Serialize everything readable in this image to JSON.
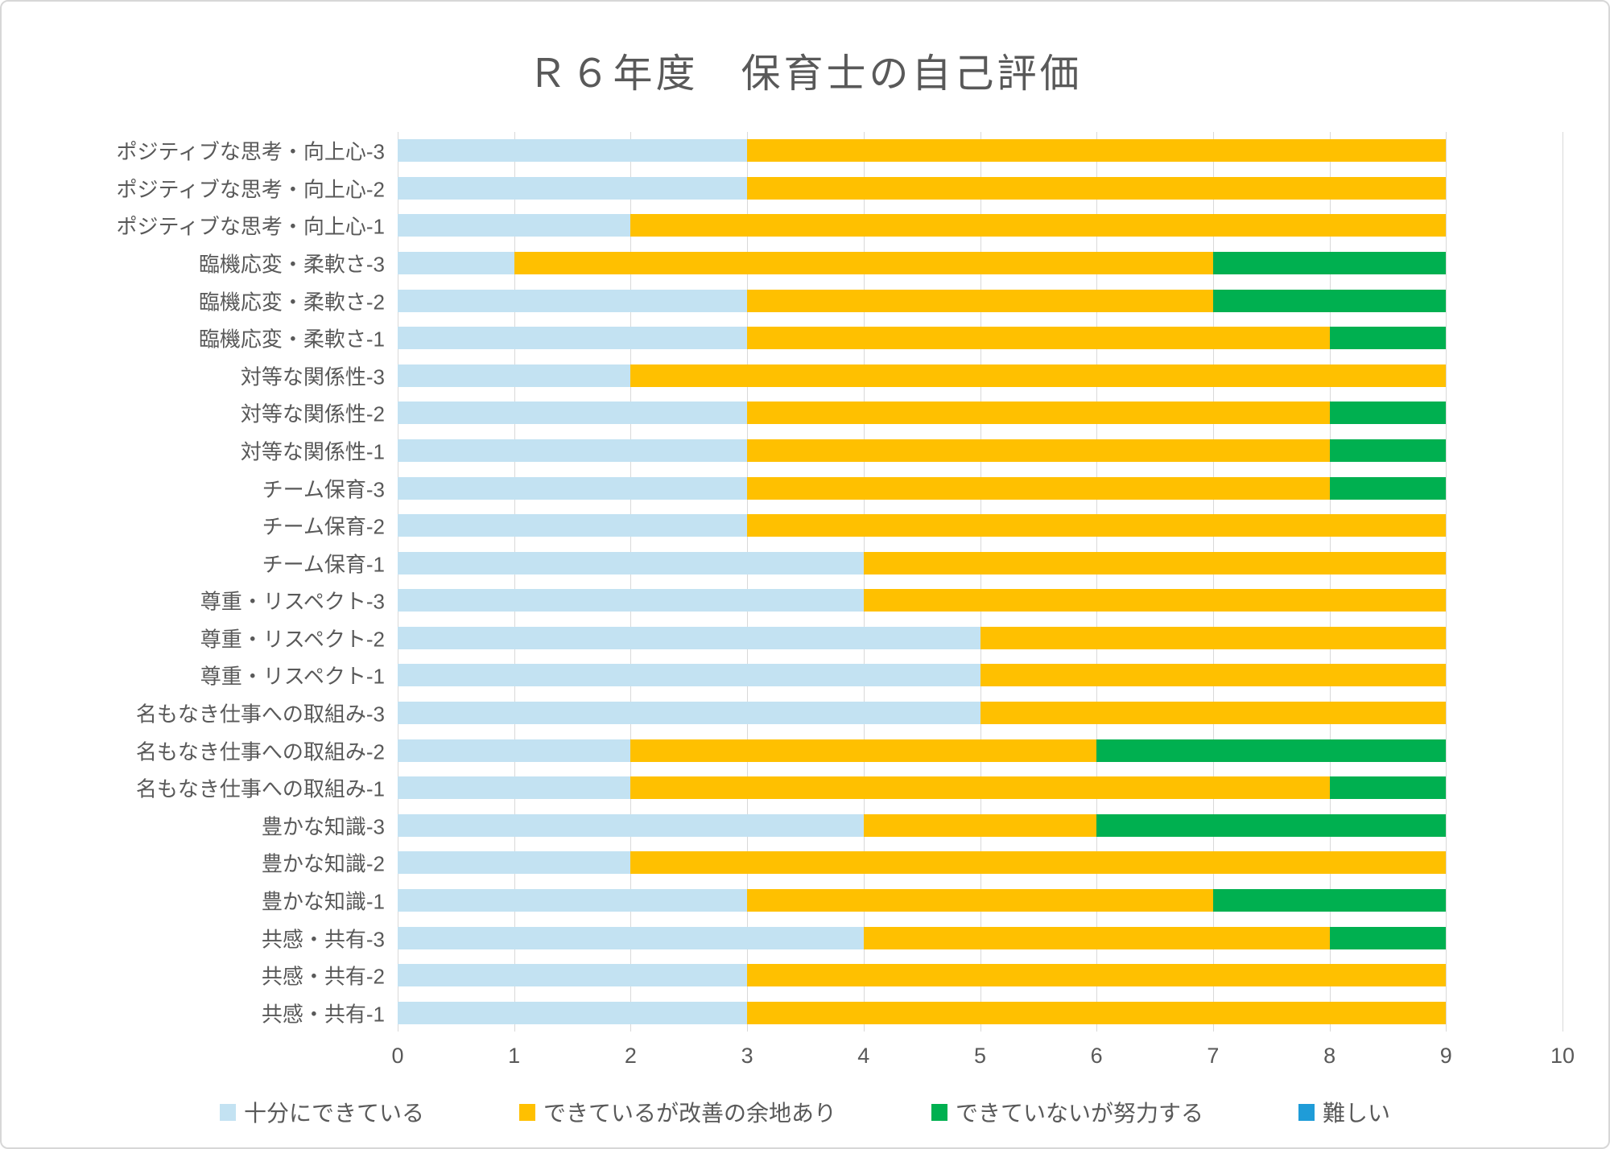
{
  "chart_title": "Ｒ６年度　保育士の自己評価",
  "colors": {
    "grid": "#d9d9d9",
    "text": "#595959",
    "series_blue_light": "#c3e2f2",
    "series_yellow": "#ffc000",
    "series_green": "#00b050",
    "series_blue": "#1f9cd8"
  },
  "chart_data": {
    "type": "bar",
    "orientation": "horizontal-stacked",
    "title": "Ｒ６年度　保育士の自己評価",
    "xlim": [
      0,
      10
    ],
    "xticks": [
      "0",
      "1",
      "2",
      "3",
      "4",
      "5",
      "6",
      "7",
      "8",
      "9",
      "10"
    ],
    "grid": true,
    "legend_position": "bottom",
    "categories": [
      "ポジティブな思考・向上心-3",
      "ポジティブな思考・向上心-2",
      "ポジティブな思考・向上心-1",
      "臨機応変・柔軟さ-3",
      "臨機応変・柔軟さ-2",
      "臨機応変・柔軟さ-1",
      "対等な関係性-3",
      "対等な関係性-2",
      "対等な関係性-1",
      "チーム保育-3",
      "チーム保育-2",
      "チーム保育-1",
      "尊重・リスペクト-3",
      "尊重・リスペクト-2",
      "尊重・リスペクト-1",
      "名もなき仕事への取組み-3",
      "名もなき仕事への取組み-2",
      "名もなき仕事への取組み-1",
      "豊かな知識-3",
      "豊かな知識-2",
      "豊かな知識-1",
      "共感・共有-3",
      "共感・共有-2",
      "共感・共有-1"
    ],
    "series": [
      {
        "name": "十分にできている",
        "color": "#c3e2f2",
        "values": [
          3,
          3,
          2,
          1,
          3,
          3,
          2,
          3,
          3,
          3,
          3,
          4,
          4,
          5,
          5,
          5,
          2,
          2,
          4,
          2,
          3,
          4,
          3,
          3
        ]
      },
      {
        "name": "できているが改善の余地あり",
        "color": "#ffc000",
        "values": [
          6,
          6,
          7,
          6,
          4,
          5,
          7,
          5,
          5,
          5,
          6,
          5,
          5,
          4,
          4,
          4,
          4,
          6,
          2,
          7,
          4,
          4,
          6,
          6
        ]
      },
      {
        "name": "できていないが努力する",
        "color": "#00b050",
        "values": [
          0,
          0,
          0,
          2,
          2,
          1,
          0,
          1,
          1,
          1,
          0,
          0,
          0,
          0,
          0,
          0,
          3,
          1,
          3,
          0,
          2,
          1,
          0,
          0
        ]
      },
      {
        "name": "難しい",
        "color": "#1f9cd8",
        "values": [
          0,
          0,
          0,
          0,
          0,
          0,
          0,
          0,
          0,
          0,
          0,
          0,
          0,
          0,
          0,
          0,
          0,
          0,
          0,
          0,
          0,
          0,
          0,
          0
        ]
      }
    ]
  }
}
